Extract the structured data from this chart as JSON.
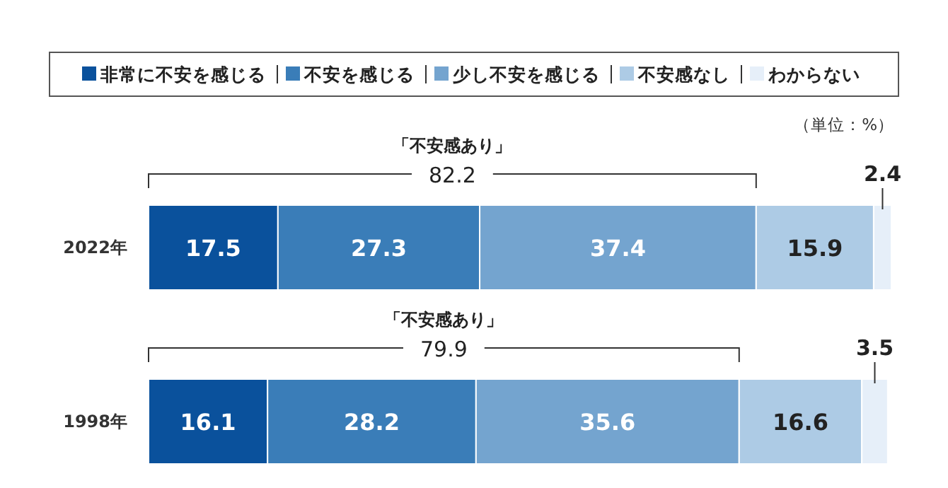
{
  "chart_data": {
    "type": "bar",
    "orientation": "horizontal",
    "stacked": true,
    "data_labels": true,
    "legend": "top",
    "categories": [
      "2022年",
      "1998年"
    ],
    "series": [
      {
        "name": "非常に不安を感じる",
        "color": "#0a519c",
        "values": [
          17.5,
          16.1
        ]
      },
      {
        "name": "不安を感じる",
        "color": "#3a7db8",
        "values": [
          27.3,
          28.2
        ]
      },
      {
        "name": "少し不安を感じる",
        "color": "#74a4cf",
        "values": [
          37.4,
          35.6
        ]
      },
      {
        "name": "不安感なし",
        "color": "#adcbe5",
        "values": [
          15.9,
          16.6
        ]
      },
      {
        "name": "わからない",
        "color": "#e6eff9",
        "values": [
          2.4,
          3.5
        ]
      }
    ],
    "annotations": [
      "（単位：%）",
      "「不安感あり」",
      "82.2",
      "「不安感あり」",
      "79.9"
    ]
  }
}
